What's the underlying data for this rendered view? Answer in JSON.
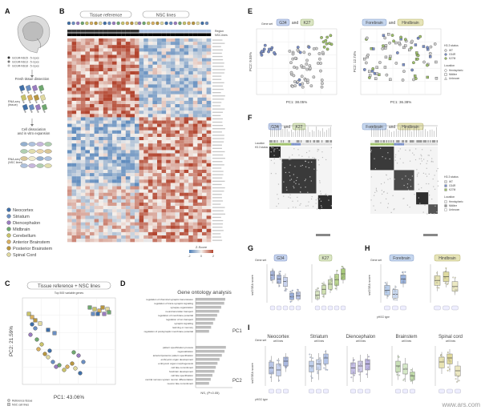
{
  "panel_letters": [
    "A",
    "B",
    "C",
    "D",
    "E",
    "F",
    "G",
    "H",
    "I"
  ],
  "panel_a": {
    "title_lines": [
      "Parent tissue",
      "dissection"
    ],
    "samples": [
      "GCGR-NS15 · 5 d pcs",
      "GCGR-NS13 · 5 d pcs",
      "GCGR-NS18 · 5 d pcs"
    ],
    "step1": "Fresh tissue dissection",
    "side1": [
      "RNA-seq",
      "(tissue)"
    ],
    "step2": [
      "Cell dissociation",
      "and in vitro expansion"
    ],
    "side2": [
      "RNA-seq",
      "(NSC lines)"
    ],
    "regions": [
      "Neocortex",
      "Striatum",
      "Diencephalon",
      "Midbrain",
      "Cerebellum",
      "Anterior Brainstem",
      "Posterior Brainstem",
      "Spinal Cord"
    ],
    "region_colors": [
      "#3f6fa8",
      "#6b8fc2",
      "#9a7cc0",
      "#6fa86f",
      "#c9c36a",
      "#d8b060",
      "#b89640",
      "#e0d9a0"
    ]
  },
  "panel_b": {
    "group_left": "Tissue reference",
    "group_right": "NSC lines",
    "row_labels": [
      "Region",
      "NSC-lines"
    ],
    "colorbar_label": "Z-Score",
    "colorbar_ticks": [
      "-2",
      "0",
      "2"
    ]
  },
  "panel_c": {
    "title": "Tissue reference + NSC lines",
    "subtitle": "Top 500 variable genes",
    "xlabel": "PC1: 43.06%",
    "ylabel": "PC2: 21.59%",
    "legend": [
      "Reference tissue",
      "NSC cell lines"
    ]
  },
  "panel_d": {
    "title": "Gene ontology analysis",
    "pc1_label": "PC1",
    "pc2_label": "PC2",
    "xlabel": "NS, (P<0.05)",
    "pc1_terms": [
      "regulation of chemical synaptic transmission",
      "regulation of trans-synaptic signaling",
      "synapse organization",
      "neurotransmitter transport",
      "regulation of membrane potential",
      "regulation of ion transport",
      "synaptic signaling",
      "learning or memory",
      "regulation of postsynaptic membrane potential"
    ],
    "pc1_values": [
      8.8,
      8.5,
      7.6,
      7.0,
      6.4,
      5.8,
      5.2,
      4.6,
      4.0
    ],
    "pc2_terms": [
      "pattern specification process",
      "regionalization",
      "anterior/posterior pattern specification",
      "embryonic organ development",
      "embryonic organ morphogenesis",
      "cell fate commitment",
      "forebrain development",
      "cell fate specification",
      "central nervous system neuron differentiation",
      "neuron fate commitment"
    ],
    "pc2_values": [
      9.0,
      8.6,
      7.8,
      7.1,
      6.5,
      6.0,
      5.6,
      5.0,
      4.5,
      4.0
    ]
  },
  "panel_e": {
    "left_prefix": "Gene set",
    "left_a": "G34",
    "left_and": "and",
    "left_b": "K27",
    "right_a": "Forebrain",
    "right_and": "and",
    "right_b": "Hindbrain",
    "xlabel": "PC1: 38.05%",
    "ylabel": "PC2: 9.55%",
    "xlabel_r": "PC1: 36.38%",
    "ylabel_r": "PC2: 12.74%",
    "legend_title": "H3.3 status",
    "legend_items": [
      "WT",
      "G34R",
      "K27M"
    ],
    "legend_title2": "Location",
    "legend_items2": [
      "Hemispheric",
      "Midline",
      "Unknown"
    ]
  },
  "panel_f": {
    "left_a": "G34",
    "left_and": "and",
    "left_b": "K27",
    "right_a": "Forebrain",
    "right_and": "and",
    "right_b": "Hindbrain",
    "row_labels": [
      "Location",
      "H3.3 status"
    ],
    "legend_title": "H3.3 status",
    "legend_items": [
      "WT",
      "G34R",
      "K27M"
    ],
    "legend_title2": "Location",
    "legend_items2": [
      "Hemispheric",
      "Midline",
      "Unknown"
    ]
  },
  "panel_g": {
    "ylabel": "ssGSEA score",
    "a": "G34",
    "b": "K27",
    "prefix": "Gene set"
  },
  "panel_h": {
    "ylabel": "ssGSEA score",
    "a": "Forebrain",
    "b": "Hindbrain",
    "prefix": "Gene set",
    "xlabel": "pHGG type"
  },
  "panel_i": {
    "ylabel": "ssGSEA score",
    "prefix": "Gene set",
    "xlabel": "pHGG type",
    "sets": [
      "Neocortex",
      "Striatum",
      "Diencephalon",
      "Brainstem",
      "Spinal cord"
    ],
    "sub": "cell lines"
  },
  "colors": {
    "heat_pos": "#b2452f",
    "heat_neg": "#4d7fb8",
    "g34": "#4f6fb3",
    "k27": "#8cae55",
    "forebrain": "#4f7fc0",
    "hindbrain": "#b8b350"
  },
  "watermark": "www.ars.com"
}
